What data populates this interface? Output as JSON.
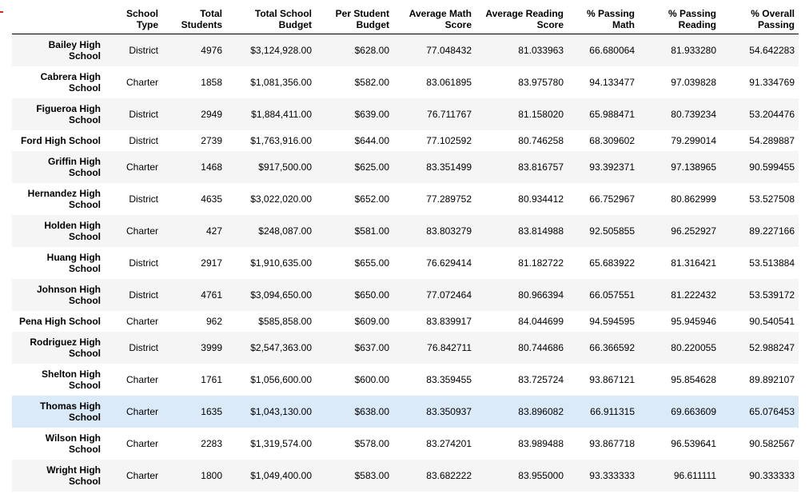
{
  "table": {
    "columns": [
      "School Type",
      "Total Students",
      "Total School Budget",
      "Per Student Budget",
      "Average Math Score",
      "Average Reading Score",
      "% Passing Math",
      "% Passing Reading",
      "% Overall Passing"
    ],
    "rows": [
      [
        "Bailey High School",
        "District",
        "4976",
        "$3,124,928.00",
        "$628.00",
        "77.048432",
        "81.033963",
        "66.680064",
        "81.933280",
        "54.642283"
      ],
      [
        "Cabrera High School",
        "Charter",
        "1858",
        "$1,081,356.00",
        "$582.00",
        "83.061895",
        "83.975780",
        "94.133477",
        "97.039828",
        "91.334769"
      ],
      [
        "Figueroa High School",
        "District",
        "2949",
        "$1,884,411.00",
        "$639.00",
        "76.711767",
        "81.158020",
        "65.988471",
        "80.739234",
        "53.204476"
      ],
      [
        "Ford High School",
        "District",
        "2739",
        "$1,763,916.00",
        "$644.00",
        "77.102592",
        "80.746258",
        "68.309602",
        "79.299014",
        "54.289887"
      ],
      [
        "Griffin High School",
        "Charter",
        "1468",
        "$917,500.00",
        "$625.00",
        "83.351499",
        "83.816757",
        "93.392371",
        "97.138965",
        "90.599455"
      ],
      [
        "Hernandez High School",
        "District",
        "4635",
        "$3,022,020.00",
        "$652.00",
        "77.289752",
        "80.934412",
        "66.752967",
        "80.862999",
        "53.527508"
      ],
      [
        "Holden High School",
        "Charter",
        "427",
        "$248,087.00",
        "$581.00",
        "83.803279",
        "83.814988",
        "92.505855",
        "96.252927",
        "89.227166"
      ],
      [
        "Huang High School",
        "District",
        "2917",
        "$1,910,635.00",
        "$655.00",
        "76.629414",
        "81.182722",
        "65.683922",
        "81.316421",
        "53.513884"
      ],
      [
        "Johnson High School",
        "District",
        "4761",
        "$3,094,650.00",
        "$650.00",
        "77.072464",
        "80.966394",
        "66.057551",
        "81.222432",
        "53.539172"
      ],
      [
        "Pena High School",
        "Charter",
        "962",
        "$585,858.00",
        "$609.00",
        "83.839917",
        "84.044699",
        "94.594595",
        "95.945946",
        "90.540541"
      ],
      [
        "Rodriguez High School",
        "District",
        "3999",
        "$2,547,363.00",
        "$637.00",
        "76.842711",
        "80.744686",
        "66.366592",
        "80.220055",
        "52.988247"
      ],
      [
        "Shelton High School",
        "Charter",
        "1761",
        "$1,056,600.00",
        "$600.00",
        "83.359455",
        "83.725724",
        "93.867121",
        "95.854628",
        "89.892107"
      ],
      [
        "Thomas High School",
        "Charter",
        "1635",
        "$1,043,130.00",
        "$638.00",
        "83.350937",
        "83.896082",
        "66.911315",
        "69.663609",
        "65.076453"
      ],
      [
        "Wilson High School",
        "Charter",
        "2283",
        "$1,319,574.00",
        "$578.00",
        "83.274201",
        "83.989488",
        "93.867718",
        "96.539641",
        "90.582567"
      ],
      [
        "Wright High School",
        "Charter",
        "1800",
        "$1,049,400.00",
        "$583.00",
        "83.682222",
        "83.955000",
        "93.333333",
        "96.611111",
        "90.333333"
      ]
    ]
  }
}
